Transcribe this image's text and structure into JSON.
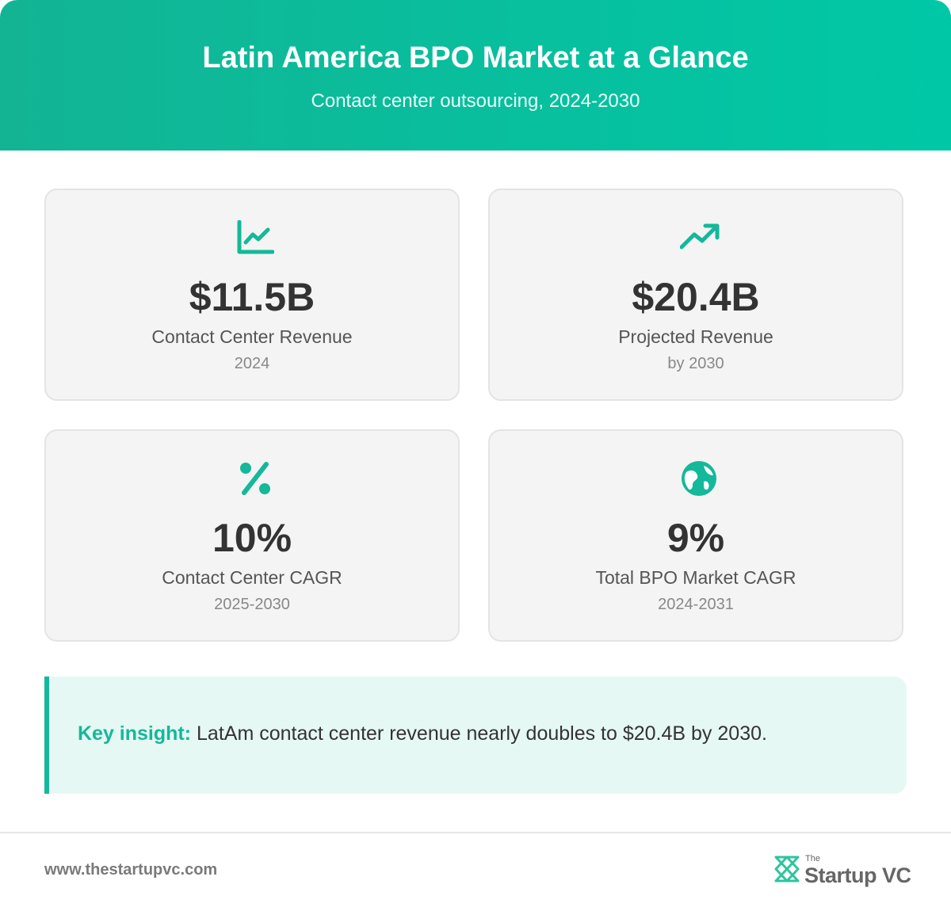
{
  "header": {
    "title": "Latin America BPO Market at a Glance",
    "subtitle": "Contact center outsourcing, 2024-2030"
  },
  "cards": [
    {
      "value": "$11.5B",
      "label": "Contact Center Revenue",
      "period": "2024"
    },
    {
      "value": "$20.4B",
      "label": "Projected Revenue",
      "period": "by 2030"
    },
    {
      "value": "10%",
      "label": "Contact Center CAGR",
      "period": "2025-2030"
    },
    {
      "value": "9%",
      "label": "Total BPO Market CAGR",
      "period": "2024-2031"
    }
  ],
  "insight": {
    "label": "Key insight:",
    "text": "LatAm contact center revenue nearly doubles to $20.4B by 2030."
  },
  "footer": {
    "url": "www.thestartupvc.com",
    "logo_small": "The",
    "logo_main": "Startup VC"
  }
}
